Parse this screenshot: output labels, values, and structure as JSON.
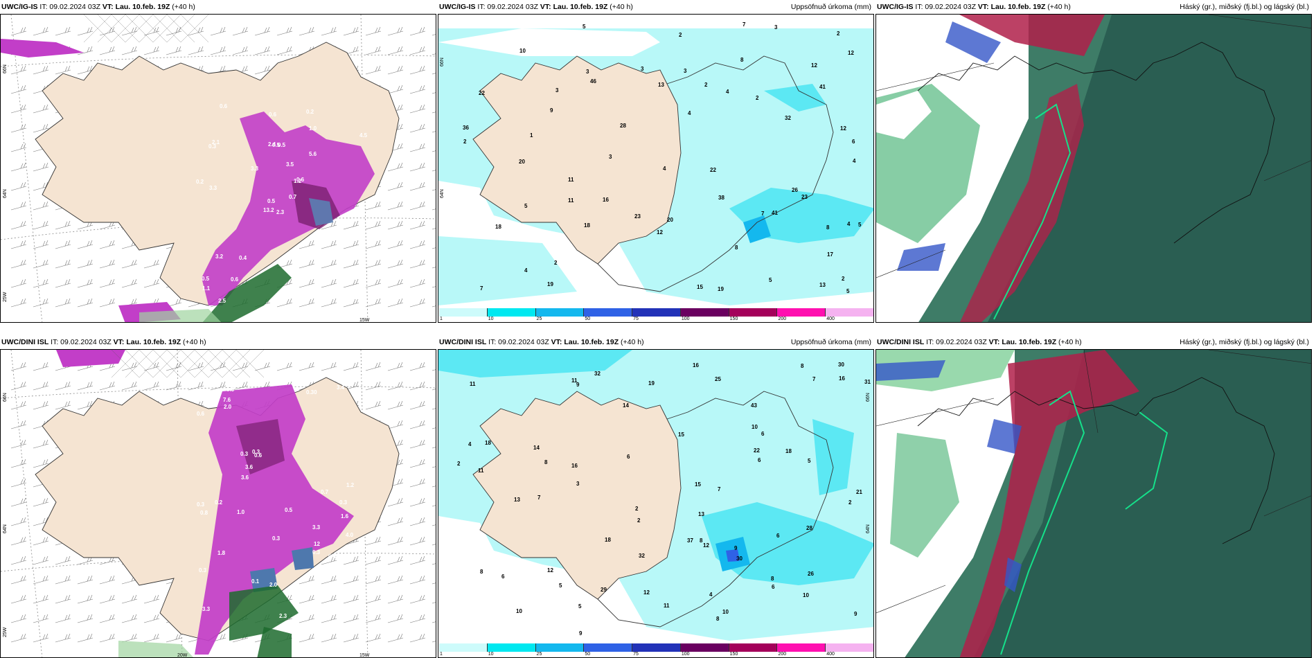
{
  "rows": [
    {
      "model": "UWC/IG-IS",
      "it": "IT: 09.02.2024 03Z",
      "vt_label": "VT:",
      "vt": "Lau. 10.feb. 19Z",
      "lead": "(+40 h)",
      "left_axis": {
        "lat1": "66N",
        "lat2": "64N",
        "lon1": "25W"
      },
      "left_bottom": [
        "15W"
      ],
      "left_values": [
        "2.3",
        "0.3",
        "0.5",
        "0.5",
        "1.2",
        "0.4",
        "0.2",
        "0.5",
        "1.0",
        "0.7",
        "0.6",
        "2.1",
        "3.3",
        "4.5",
        "13.2",
        "5.6",
        "2.5",
        "2.4",
        "3.5",
        "3.2",
        "3.3",
        "1.1",
        "0.6",
        "0.5",
        "0.6",
        "3.3",
        "2.1",
        "0.6",
        "0.2"
      ],
      "mid_values": [
        "46",
        "12",
        "4",
        "6",
        "3",
        "4",
        "16",
        "7",
        "8",
        "12",
        "9",
        "23",
        "32",
        "18",
        "18",
        "4",
        "11",
        "36",
        "5",
        "3",
        "2",
        "3",
        "4",
        "5",
        "4",
        "3",
        "7",
        "8",
        "15",
        "12",
        "19",
        "5",
        "20",
        "2",
        "1",
        "2",
        "4",
        "38",
        "41",
        "26",
        "19",
        "22",
        "23",
        "20",
        "17",
        "10",
        "2",
        "2",
        "3",
        "2",
        "13",
        "3",
        "5",
        "8",
        "11",
        "12",
        "13",
        "7",
        "41",
        "22",
        "5",
        "2",
        "28"
      ],
      "mid_axis": {
        "lat1": "66N",
        "lat2": "64N"
      }
    },
    {
      "model": "UWC/DINI ISL",
      "it": "IT: 09.02.2024 03Z",
      "vt_label": "VT:",
      "vt": "Lau. 10.feb. 19Z",
      "lead": "(+40 h)",
      "left_axis": {
        "lat1": "66N",
        "lat2": "64N",
        "lon1": "25W"
      },
      "left_bottom": [
        "20W",
        "15W"
      ],
      "left_values": [
        "3.3",
        "1.6",
        "3.3",
        "0.5",
        "0.6",
        "0.4",
        "0.3",
        "0.30",
        "0.3",
        "0.6",
        "0.6",
        "0.3",
        "0.4",
        "0.9",
        "0.1",
        "1.2",
        "0.3",
        "0.5",
        "0.3",
        "1.8",
        "0.7",
        "3.4",
        "3.6",
        "4.0",
        "9.5",
        "7.6",
        "12",
        "0.8",
        "2.0",
        "0.7",
        "2.3",
        "3.9",
        "3.6",
        "1.0",
        "0.3",
        "0.5",
        "0.3",
        "0.2",
        "2.0"
      ],
      "mid_values": [
        "10",
        "9",
        "12",
        "14",
        "18",
        "4",
        "2",
        "3",
        "2",
        "5",
        "6",
        "4",
        "2",
        "8",
        "6",
        "8",
        "11",
        "7",
        "6",
        "5",
        "8",
        "12",
        "5",
        "6",
        "7",
        "6",
        "7",
        "8",
        "11",
        "14",
        "30",
        "30",
        "43",
        "29",
        "32",
        "12",
        "16",
        "18",
        "21",
        "9",
        "19",
        "15",
        "31",
        "26",
        "25",
        "28",
        "37",
        "32",
        "13",
        "16",
        "18",
        "15",
        "16",
        "10",
        "11",
        "9",
        "10",
        "6",
        "9",
        "8",
        "2",
        "8",
        "22",
        "13",
        "11",
        "10"
      ],
      "mid_axis": {
        "lat1": "66N",
        "lat2": "64N"
      }
    }
  ],
  "precip_title": "Uppsöfnuð úrkoma (mm)",
  "cloud_title": "Háský (gr.), miðský (fj.bl.) og lágský (bl.)",
  "colorbar": {
    "ticks": [
      "1",
      "10",
      "25",
      "50",
      "75",
      "100",
      "150",
      "200",
      "400"
    ],
    "colors": [
      "#cdfbfb",
      "#00e8f0",
      "#14b8ee",
      "#2f62e6",
      "#2232b8",
      "#6a0060",
      "#a4005a",
      "#ff10b0",
      "#f5b2f0"
    ]
  },
  "colors": {
    "land": "#f5e4d2",
    "sea_shade": "#b8f8f8",
    "precip_purple": "#c23ec8",
    "cloud_dark": "#2a5e52",
    "cloud_high": "#b0204a"
  }
}
